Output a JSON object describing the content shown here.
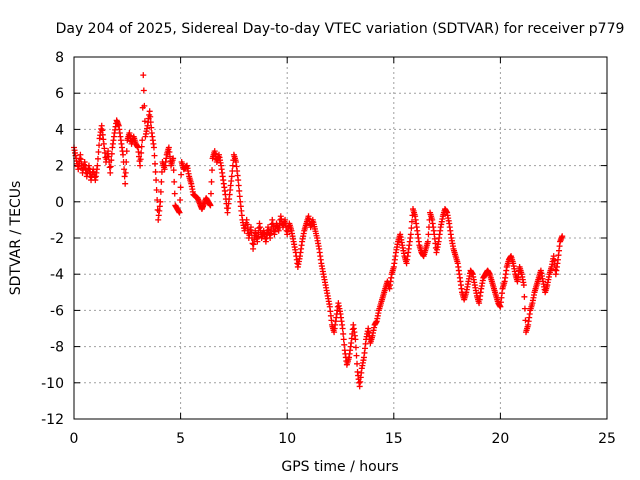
{
  "chart_data": {
    "type": "scatter",
    "title": "Day 204 of 2025, Sidereal Day-to-day VTEC variation (SDTVAR) for receiver p779",
    "xlabel": "GPS time / hours",
    "ylabel": "SDTVAR / TECUs",
    "xlim": [
      0,
      25
    ],
    "ylim": [
      -12,
      8
    ],
    "xticks": [
      0,
      5,
      10,
      15,
      20,
      25
    ],
    "yticks": [
      -12,
      -10,
      -8,
      -6,
      -4,
      -2,
      0,
      2,
      4,
      6,
      8
    ],
    "grid": true,
    "marker": "+",
    "series": [
      {
        "color": "#ff0000",
        "points": [
          [
            0.0,
            3.0
          ],
          [
            0.1,
            2.4
          ],
          [
            0.2,
            1.8
          ],
          [
            0.3,
            2.6
          ],
          [
            0.4,
            1.6
          ],
          [
            0.5,
            2.2
          ],
          [
            0.6,
            1.4
          ],
          [
            0.7,
            2.0
          ],
          [
            0.8,
            1.2
          ],
          [
            0.9,
            1.8
          ],
          [
            1.0,
            1.2
          ],
          [
            1.1,
            2.0
          ],
          [
            1.2,
            3.5
          ],
          [
            1.3,
            4.2
          ],
          [
            1.4,
            3.2
          ],
          [
            1.5,
            2.2
          ],
          [
            1.6,
            2.8
          ],
          [
            1.7,
            1.6
          ],
          [
            1.8,
            3.0
          ],
          [
            1.9,
            3.8
          ],
          [
            2.0,
            4.5
          ],
          [
            2.1,
            4.2
          ],
          [
            2.2,
            3.4
          ],
          [
            2.3,
            2.6
          ],
          [
            2.4,
            1.0
          ],
          [
            2.5,
            3.4
          ],
          [
            2.6,
            3.8
          ],
          [
            2.7,
            3.2
          ],
          [
            2.8,
            3.6
          ],
          [
            2.9,
            3.2
          ],
          [
            3.0,
            3.0
          ],
          [
            3.1,
            2.0
          ],
          [
            3.2,
            3.4
          ],
          [
            3.25,
            7.0
          ],
          [
            3.35,
            3.6
          ],
          [
            3.45,
            4.2
          ],
          [
            3.55,
            5.0
          ],
          [
            3.65,
            3.8
          ],
          [
            3.75,
            3.0
          ],
          [
            3.85,
            1.2
          ],
          [
            3.95,
            -1.0
          ],
          [
            4.05,
            0.0
          ],
          [
            4.15,
            2.2
          ],
          [
            4.25,
            1.8
          ],
          [
            4.35,
            2.6
          ],
          [
            4.45,
            3.0
          ],
          [
            4.55,
            2.0
          ],
          [
            4.65,
            2.4
          ],
          [
            4.75,
            -0.2
          ],
          [
            4.85,
            -0.4
          ],
          [
            4.95,
            -0.6
          ],
          [
            5.05,
            2.2
          ],
          [
            5.15,
            1.8
          ],
          [
            5.3,
            2.0
          ],
          [
            5.4,
            1.4
          ],
          [
            5.5,
            1.0
          ],
          [
            5.6,
            0.4
          ],
          [
            5.8,
            0.2
          ],
          [
            6.0,
            -0.4
          ],
          [
            6.2,
            0.2
          ],
          [
            6.4,
            -0.2
          ],
          [
            6.5,
            2.4
          ],
          [
            6.6,
            2.8
          ],
          [
            6.7,
            2.2
          ],
          [
            6.8,
            2.6
          ],
          [
            6.9,
            2.0
          ],
          [
            7.0,
            1.2
          ],
          [
            7.1,
            0.4
          ],
          [
            7.2,
            -0.6
          ],
          [
            7.3,
            0.4
          ],
          [
            7.4,
            1.4
          ],
          [
            7.5,
            2.6
          ],
          [
            7.6,
            2.2
          ],
          [
            7.7,
            1.2
          ],
          [
            7.8,
            0.0
          ],
          [
            7.9,
            -1.0
          ],
          [
            8.0,
            -1.6
          ],
          [
            8.1,
            -1.0
          ],
          [
            8.2,
            -2.0
          ],
          [
            8.3,
            -1.4
          ],
          [
            8.4,
            -2.6
          ],
          [
            8.5,
            -1.6
          ],
          [
            8.6,
            -2.2
          ],
          [
            8.7,
            -1.2
          ],
          [
            8.8,
            -2.0
          ],
          [
            8.9,
            -1.6
          ],
          [
            9.0,
            -2.2
          ],
          [
            9.1,
            -1.4
          ],
          [
            9.2,
            -2.0
          ],
          [
            9.3,
            -1.0
          ],
          [
            9.4,
            -1.8
          ],
          [
            9.5,
            -1.2
          ],
          [
            9.6,
            -1.6
          ],
          [
            9.7,
            -0.8
          ],
          [
            9.8,
            -1.4
          ],
          [
            9.9,
            -1.0
          ],
          [
            10.0,
            -1.8
          ],
          [
            10.1,
            -1.2
          ],
          [
            10.2,
            -1.6
          ],
          [
            10.3,
            -2.2
          ],
          [
            10.4,
            -2.8
          ],
          [
            10.5,
            -3.6
          ],
          [
            10.6,
            -3.0
          ],
          [
            10.7,
            -2.2
          ],
          [
            10.8,
            -1.6
          ],
          [
            10.9,
            -1.2
          ],
          [
            11.0,
            -0.8
          ],
          [
            11.1,
            -1.4
          ],
          [
            11.2,
            -1.0
          ],
          [
            11.4,
            -2.0
          ],
          [
            11.5,
            -2.6
          ],
          [
            11.6,
            -3.4
          ],
          [
            11.7,
            -4.0
          ],
          [
            11.8,
            -4.6
          ],
          [
            11.9,
            -5.2
          ],
          [
            12.0,
            -5.8
          ],
          [
            12.1,
            -6.8
          ],
          [
            12.2,
            -7.2
          ],
          [
            12.3,
            -6.4
          ],
          [
            12.4,
            -5.6
          ],
          [
            12.5,
            -6.2
          ],
          [
            12.6,
            -7.0
          ],
          [
            12.7,
            -8.2
          ],
          [
            12.8,
            -9.0
          ],
          [
            12.9,
            -8.6
          ],
          [
            13.0,
            -7.8
          ],
          [
            13.1,
            -6.8
          ],
          [
            13.2,
            -7.6
          ],
          [
            13.3,
            -9.4
          ],
          [
            13.4,
            -10.2
          ],
          [
            13.5,
            -9.2
          ],
          [
            13.6,
            -8.6
          ],
          [
            13.7,
            -7.6
          ],
          [
            13.8,
            -7.0
          ],
          [
            13.9,
            -7.8
          ],
          [
            14.0,
            -7.4
          ],
          [
            14.1,
            -6.8
          ],
          [
            14.2,
            -6.6
          ],
          [
            14.3,
            -6.0
          ],
          [
            14.4,
            -5.6
          ],
          [
            14.5,
            -5.2
          ],
          [
            14.6,
            -4.8
          ],
          [
            14.7,
            -4.4
          ],
          [
            14.8,
            -4.8
          ],
          [
            14.9,
            -4.0
          ],
          [
            15.0,
            -3.6
          ],
          [
            15.1,
            -2.8
          ],
          [
            15.2,
            -2.2
          ],
          [
            15.3,
            -1.8
          ],
          [
            15.4,
            -2.4
          ],
          [
            15.5,
            -3.0
          ],
          [
            15.6,
            -3.4
          ],
          [
            15.7,
            -2.6
          ],
          [
            15.8,
            -1.8
          ],
          [
            15.9,
            -0.4
          ],
          [
            16.0,
            -0.8
          ],
          [
            16.1,
            -1.6
          ],
          [
            16.2,
            -2.4
          ],
          [
            16.3,
            -2.8
          ],
          [
            16.4,
            -3.0
          ],
          [
            16.5,
            -2.6
          ],
          [
            16.6,
            -2.2
          ],
          [
            16.7,
            -0.6
          ],
          [
            16.8,
            -1.0
          ],
          [
            16.9,
            -1.8
          ],
          [
            17.0,
            -2.8
          ],
          [
            17.1,
            -2.2
          ],
          [
            17.2,
            -1.4
          ],
          [
            17.3,
            -0.8
          ],
          [
            17.4,
            -0.4
          ],
          [
            17.5,
            -0.6
          ],
          [
            17.6,
            -1.2
          ],
          [
            17.7,
            -2.0
          ],
          [
            17.8,
            -2.6
          ],
          [
            17.9,
            -3.0
          ],
          [
            18.0,
            -3.4
          ],
          [
            18.1,
            -4.2
          ],
          [
            18.2,
            -5.0
          ],
          [
            18.3,
            -5.4
          ],
          [
            18.4,
            -5.0
          ],
          [
            18.5,
            -4.4
          ],
          [
            18.6,
            -3.8
          ],
          [
            18.7,
            -4.0
          ],
          [
            18.8,
            -4.6
          ],
          [
            18.9,
            -5.2
          ],
          [
            19.0,
            -5.6
          ],
          [
            19.1,
            -4.8
          ],
          [
            19.2,
            -4.2
          ],
          [
            19.3,
            -4.0
          ],
          [
            19.4,
            -3.8
          ],
          [
            19.5,
            -4.0
          ],
          [
            19.6,
            -4.4
          ],
          [
            19.7,
            -4.8
          ],
          [
            19.8,
            -5.2
          ],
          [
            19.9,
            -5.6
          ],
          [
            20.0,
            -5.8
          ],
          [
            20.1,
            -4.8
          ],
          [
            20.2,
            -4.4
          ],
          [
            20.3,
            -3.6
          ],
          [
            20.4,
            -3.2
          ],
          [
            20.5,
            -3.0
          ],
          [
            20.6,
            -3.4
          ],
          [
            20.7,
            -4.0
          ],
          [
            20.8,
            -4.4
          ],
          [
            20.9,
            -3.6
          ],
          [
            21.0,
            -4.0
          ],
          [
            21.1,
            -4.6
          ],
          [
            21.2,
            -7.2
          ],
          [
            21.3,
            -6.8
          ],
          [
            21.4,
            -6.0
          ],
          [
            21.5,
            -5.6
          ],
          [
            21.6,
            -5.0
          ],
          [
            21.7,
            -4.6
          ],
          [
            21.8,
            -4.2
          ],
          [
            21.9,
            -3.8
          ],
          [
            22.0,
            -4.4
          ],
          [
            22.1,
            -5.0
          ],
          [
            22.2,
            -4.6
          ],
          [
            22.3,
            -4.0
          ],
          [
            22.4,
            -3.6
          ],
          [
            22.5,
            -3.0
          ],
          [
            22.6,
            -4.0
          ],
          [
            22.7,
            -3.2
          ],
          [
            22.8,
            -2.2
          ],
          [
            22.9,
            -1.9
          ]
        ]
      }
    ]
  }
}
